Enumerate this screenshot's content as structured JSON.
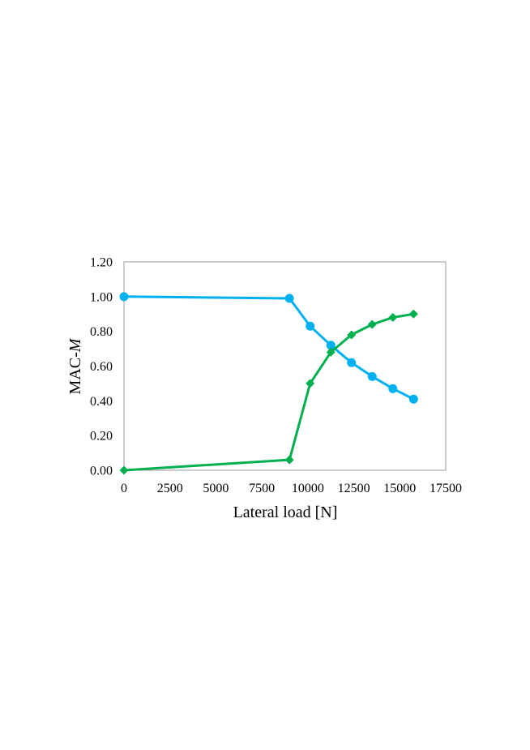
{
  "chart_data": {
    "type": "line",
    "title": "",
    "xlabel": "Lateral load [N]",
    "ylabel_prefix": "MAC-",
    "ylabel_italic": "M",
    "xlim": [
      0,
      17500
    ],
    "ylim": [
      0,
      1.2
    ],
    "xticks": [
      0,
      2500,
      5000,
      7500,
      10000,
      12500,
      15000,
      17500
    ],
    "yticks": [
      "0.00",
      "0.20",
      "0.40",
      "0.60",
      "0.80",
      "1.00",
      "1.20"
    ],
    "grid": false,
    "legend": "none",
    "series": [
      {
        "marker": "circle",
        "color": "#00B0F0",
        "x": [
          0,
          9000,
          10125,
          11250,
          12375,
          13500,
          14625,
          15750
        ],
        "y": [
          1.0,
          0.99,
          0.83,
          0.72,
          0.62,
          0.54,
          0.47,
          0.41
        ]
      },
      {
        "marker": "diamond",
        "color": "#00B050",
        "x": [
          0,
          9000,
          10125,
          11250,
          12375,
          13500,
          14625,
          15750
        ],
        "y": [
          0.0,
          0.06,
          0.5,
          0.68,
          0.78,
          0.84,
          0.88,
          0.9
        ]
      }
    ]
  }
}
